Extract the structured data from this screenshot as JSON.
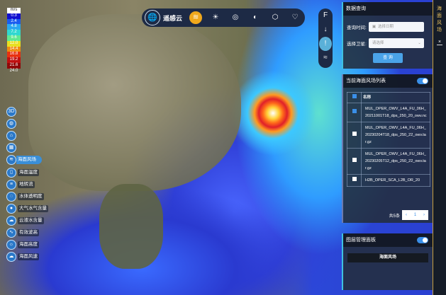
{
  "legend": {
    "unit": "m/s",
    "stops": [
      {
        "v": "0.3",
        "c": "#1010d0"
      },
      {
        "v": "2.4",
        "c": "#1a5cf0"
      },
      {
        "v": "4.8",
        "c": "#28a8f0"
      },
      {
        "v": "7.2",
        "c": "#30d8d0"
      },
      {
        "v": "9.6",
        "c": "#60e890"
      },
      {
        "v": "12.0",
        "c": "#e8e020"
      },
      {
        "v": "14.4",
        "c": "#f08a10"
      },
      {
        "v": "16.8",
        "c": "#e83010"
      },
      {
        "v": "19.2",
        "c": "#c01010"
      },
      {
        "v": "21.6",
        "c": "#900808"
      }
    ],
    "max": "24.0"
  },
  "sidebar": {
    "items": [
      {
        "icon": "3d-icon",
        "glyph": "3D",
        "label": ""
      },
      {
        "icon": "globe-icon",
        "glyph": "◍",
        "label": ""
      },
      {
        "icon": "location-icon",
        "glyph": "⌂",
        "label": ""
      },
      {
        "icon": "grid-icon",
        "glyph": "▦",
        "label": ""
      },
      {
        "icon": "wind-icon",
        "glyph": "≋",
        "label": "海面风场",
        "active": true
      },
      {
        "icon": "thermometer-icon",
        "glyph": "▯",
        "label": "海面温度"
      },
      {
        "icon": "waves-icon",
        "glyph": "≡",
        "label": "地转流"
      },
      {
        "icon": "drop-icon",
        "glyph": "◌",
        "label": "水体透明度"
      },
      {
        "icon": "water-drop-icon",
        "glyph": "●",
        "label": "大气水气含量"
      },
      {
        "icon": "cloud-water-icon",
        "glyph": "☁",
        "label": "云液水含量"
      },
      {
        "icon": "wave-height-icon",
        "glyph": "∿",
        "label": "有效波高"
      },
      {
        "icon": "sea-height-icon",
        "glyph": "☼",
        "label": "海面高度"
      },
      {
        "icon": "wind-speed-icon",
        "glyph": "☁",
        "label": "海面风速"
      }
    ]
  },
  "topbar": {
    "title": "遥感云",
    "buttons": [
      {
        "icon": "ocean-layer-icon",
        "glyph": "≋",
        "active": true
      },
      {
        "icon": "sunrise-sea-icon",
        "glyph": "☀"
      },
      {
        "icon": "wave-circle-icon",
        "glyph": "◎"
      },
      {
        "icon": "shield-icon",
        "glyph": "◐"
      },
      {
        "icon": "cube-icon",
        "glyph": "⬡"
      },
      {
        "icon": "heart-check-icon",
        "glyph": "♡"
      }
    ]
  },
  "vtools": [
    {
      "icon": "flag-icon",
      "glyph": "F"
    },
    {
      "icon": "arrow-down-icon",
      "glyph": "↓"
    },
    {
      "icon": "pin-icon",
      "glyph": "!"
    },
    {
      "icon": "wind-icon",
      "glyph": "≈"
    }
  ],
  "query": {
    "title": "数据查询",
    "time_label": "查询时间:",
    "time_placeholder": "选择日期",
    "satellite_label": "选择卫星:",
    "satellite_placeholder": "请选择",
    "submit": "查 询"
  },
  "list": {
    "title": "当前海面风场列表",
    "header": "名称",
    "rows": [
      {
        "name": "MUL_OPER_OWV_L4A_FU_06H_20211001T18_dps_250_20_owv.nc",
        "checked": true
      },
      {
        "name": "MUL_OPER_OWV_L4A_FU_06H_20230204T18_dps_250_22_owv.tar.gz",
        "checked": false
      },
      {
        "name": "MUL_OPER_OWV_L4A_FU_06H_20230205T12_dps_250_22_owv.tar.gz",
        "checked": false
      },
      {
        "name": "H2B_OPER_SCA_L2B_OR_20",
        "checked": false
      }
    ],
    "total": "共5条",
    "page": "1"
  },
  "layers": {
    "title": "图层管理面板",
    "items": [
      "海面风场"
    ]
  },
  "strip": {
    "title": "海面风场",
    "close": "×"
  }
}
